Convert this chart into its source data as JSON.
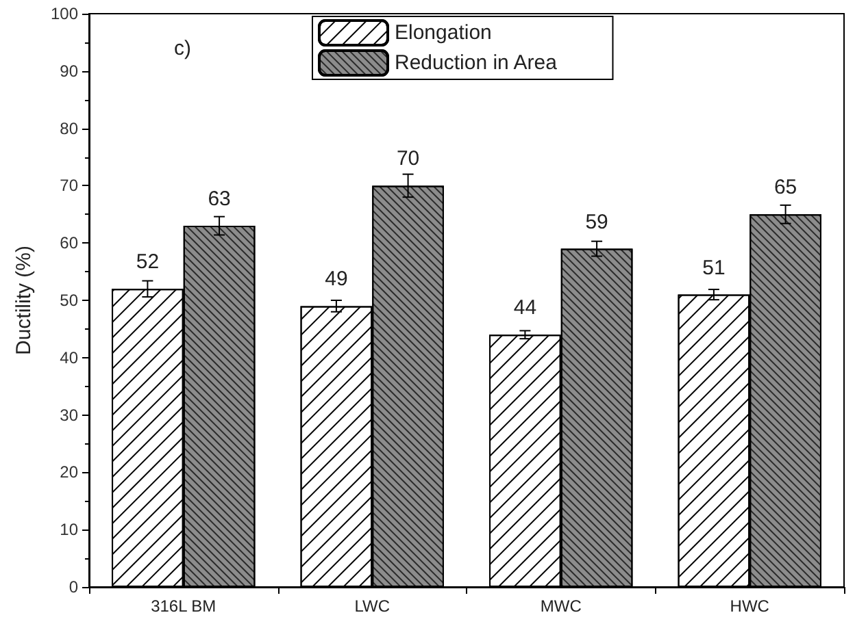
{
  "chart_data": {
    "type": "bar",
    "ylabel": "Ductility (%)",
    "categories": [
      "316L BM",
      "LWC",
      "MWC",
      "HWC"
    ],
    "series": [
      {
        "name": "Elongation",
        "color": "#ffffff",
        "values": [
          52,
          49,
          44,
          51
        ],
        "errors": [
          1.4,
          1,
          0.7,
          0.9
        ]
      },
      {
        "name": "Reduction in Area",
        "color": "#8c8c8c",
        "values": [
          63,
          70,
          59,
          65
        ],
        "errors": [
          1.6,
          2,
          1.3,
          1.6
        ]
      }
    ],
    "ylim": [
      0,
      100
    ],
    "yticks": [
      0,
      10,
      20,
      30,
      40,
      50,
      60,
      70,
      80,
      90,
      100
    ],
    "data_labels": true,
    "legend": "top",
    "grid": false,
    "annotations": [
      "c)"
    ]
  }
}
